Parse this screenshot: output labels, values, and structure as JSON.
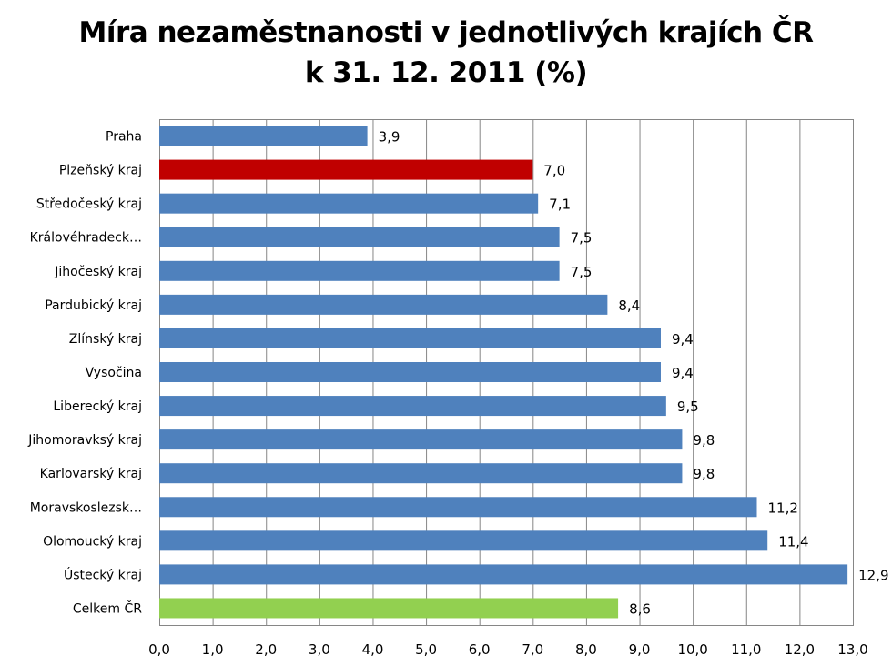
{
  "chart_data": {
    "type": "bar",
    "orientation": "horizontal",
    "title_line1": "Míra nezaměstnanosti v jednotlivých krajích ČR",
    "title_line2": "k 31. 12. 2011 (%)",
    "xlabel": "",
    "ylabel": "",
    "xlim": [
      0,
      13
    ],
    "x_ticks": [
      "0,0",
      "1,0",
      "2,0",
      "3,0",
      "4,0",
      "5,0",
      "6,0",
      "7,0",
      "8,0",
      "9,0",
      "10,0",
      "11,0",
      "12,0",
      "13,0"
    ],
    "grid": "vertical",
    "legend": "none",
    "categories": [
      "Praha",
      "Plzeňský kraj",
      "Středočeský kraj",
      "Královéhradeck…",
      "Jihočeský kraj",
      "Pardubický kraj",
      "Zlínský kraj",
      "Vysočina",
      "Liberecký kraj",
      "Jihomoravksý kraj",
      "Karlovarský kraj",
      "Moravskoslezsk…",
      "Olomoucký kraj",
      "Ústecký kraj",
      "Celkem ČR"
    ],
    "values": [
      3.9,
      7.0,
      7.1,
      7.5,
      7.5,
      8.4,
      9.4,
      9.4,
      9.5,
      9.8,
      9.8,
      11.2,
      11.4,
      12.9,
      8.6
    ],
    "value_labels": [
      "3,9",
      "7,0",
      "7,1",
      "7,5",
      "7,5",
      "8,4",
      "9,4",
      "9,4",
      "9,5",
      "9,8",
      "9,8",
      "11,2",
      "11,4",
      "12,9",
      "8,6"
    ],
    "colors": {
      "default": "#4f81bd",
      "highlight": "#c00000",
      "total": "#92d050",
      "grid": "#868686"
    },
    "bar_colors": [
      "default",
      "highlight",
      "default",
      "default",
      "default",
      "default",
      "default",
      "default",
      "default",
      "default",
      "default",
      "default",
      "default",
      "default",
      "total"
    ]
  }
}
